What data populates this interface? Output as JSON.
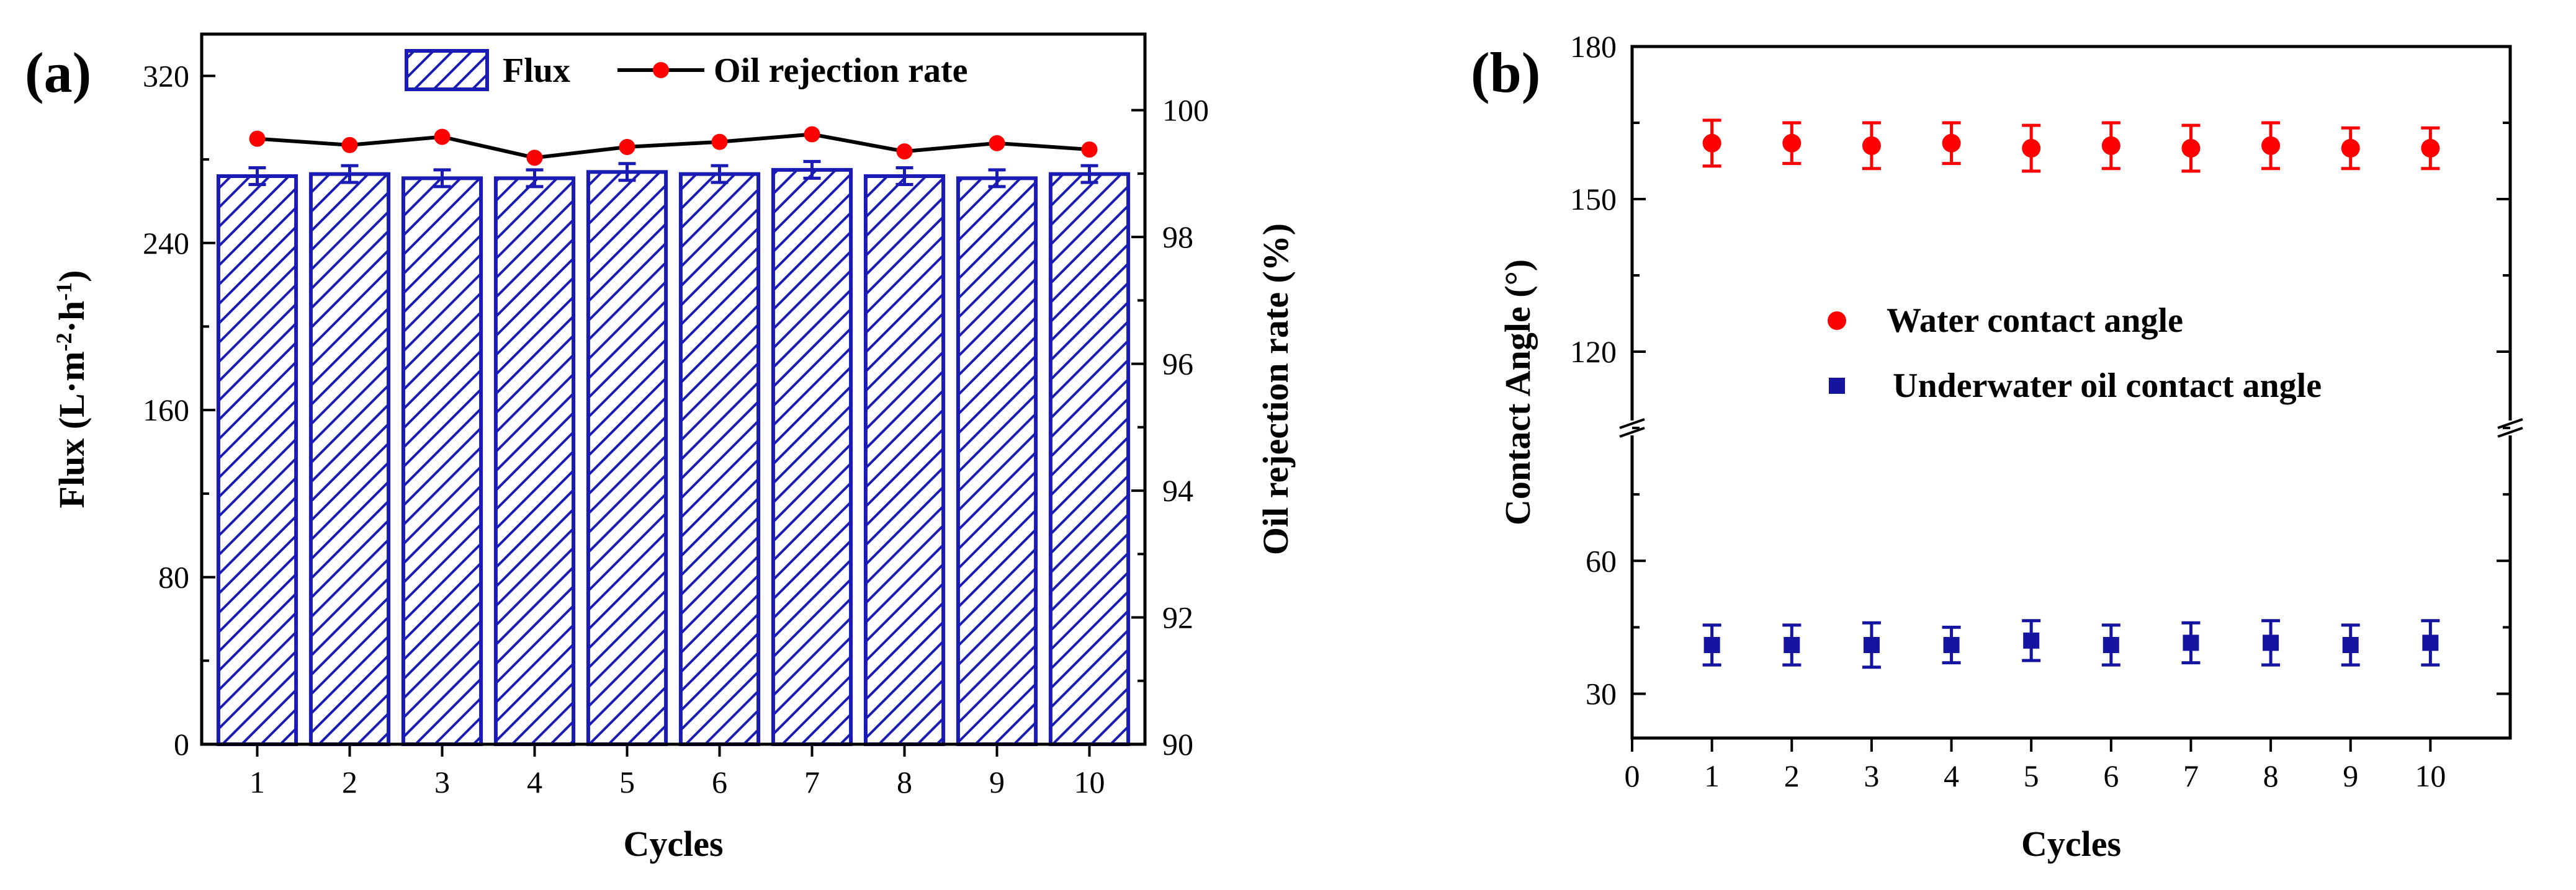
{
  "chart_data": [
    {
      "panel": "(a)",
      "type": "bar+line",
      "categories": [
        "1",
        "2",
        "3",
        "4",
        "5",
        "6",
        "7",
        "8",
        "9",
        "10"
      ],
      "xlabel": "Cycles",
      "ylabel_left_html": "Flux (L·m<tspan baseline-shift=\"super\" font-size=\"36\">-2</tspan>·h<tspan baseline-shift=\"super\" font-size=\"36\">-1</tspan>)",
      "ylabel_left_text": "Flux (L·m-2·h-1)",
      "ylabel_right": "Oil rejection rate (%)",
      "ylim_left": [
        0,
        340
      ],
      "yticks_left": [
        0,
        80,
        160,
        240,
        320
      ],
      "ylim_right": [
        90,
        101.2
      ],
      "yticks_right": [
        90,
        92,
        94,
        96,
        98,
        100
      ],
      "series": [
        {
          "name": "Flux",
          "type": "bar",
          "axis": "left",
          "values": [
            272,
            273,
            271,
            271,
            274,
            273,
            275,
            272,
            271,
            273
          ],
          "errors": [
            4,
            4,
            4,
            4,
            4,
            4,
            4,
            4,
            4,
            4
          ],
          "color": "#1a1ab4"
        },
        {
          "name": "Oil rejection rate",
          "type": "line",
          "axis": "right",
          "values": [
            99.55,
            99.45,
            99.58,
            99.25,
            99.42,
            99.5,
            99.62,
            99.35,
            99.48,
            99.38
          ],
          "color": "#ff0000"
        }
      ],
      "legend_position": "top-center"
    },
    {
      "panel": "(b)",
      "type": "scatter",
      "x": [
        1,
        2,
        3,
        4,
        5,
        6,
        7,
        8,
        9,
        10
      ],
      "xticks": [
        0,
        1,
        2,
        3,
        4,
        5,
        6,
        7,
        8,
        9,
        10
      ],
      "xlim": [
        0,
        11
      ],
      "xlabel": "Cycles",
      "ylabel": "Contact Angle (°)",
      "ylim_lower": [
        20,
        90
      ],
      "yticks_lower": [
        30,
        60
      ],
      "ylim_upper": [
        105,
        180
      ],
      "yticks_upper": [
        120,
        150,
        180
      ],
      "axis_break": "between 90 and 105",
      "series": [
        {
          "name": "Water contact angle",
          "marker": "circle",
          "color": "#ff0000",
          "values": [
            161,
            161,
            160.5,
            161,
            160,
            160.5,
            160,
            160.5,
            160,
            160
          ],
          "errors": [
            4.5,
            4,
            4.5,
            4,
            4.5,
            4.5,
            4.5,
            4.5,
            4,
            4
          ]
        },
        {
          "name": "Underwater oil contact angle",
          "marker": "square",
          "color": "#1414a0",
          "values": [
            41,
            41,
            41,
            41,
            42,
            41,
            41.5,
            41.5,
            41,
            41.5
          ],
          "errors": [
            4.5,
            4.5,
            5,
            4,
            4.5,
            4.5,
            4.5,
            5,
            4.5,
            5
          ]
        }
      ],
      "legend_position": "center"
    }
  ]
}
